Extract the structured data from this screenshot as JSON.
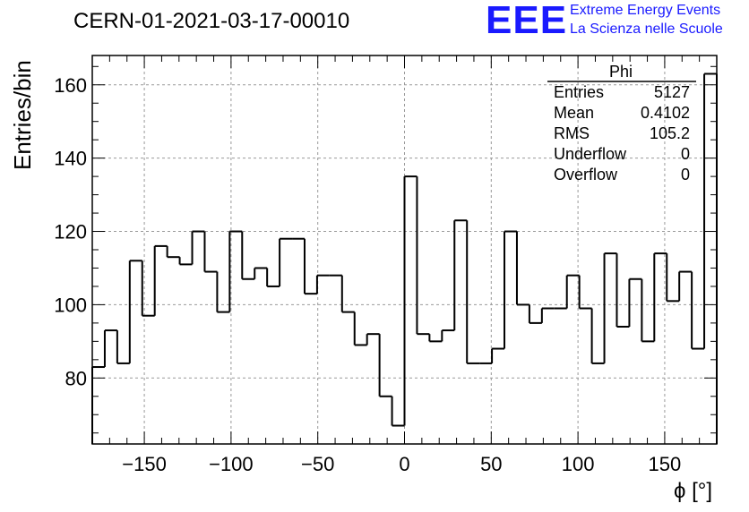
{
  "header": {
    "title": "CERN-01-2021-03-17-00010",
    "logo_text": "EEE",
    "logo_line1": "Extreme Energy Events",
    "logo_line2": "La Scienza nelle Scuole"
  },
  "stats_box": {
    "name": "Phi",
    "rows": [
      {
        "label": "Entries",
        "value": "5127"
      },
      {
        "label": "Mean",
        "value": "0.4102"
      },
      {
        "label": "RMS",
        "value": "105.2"
      },
      {
        "label": "Underflow",
        "value": "0"
      },
      {
        "label": "Overflow",
        "value": "0"
      }
    ]
  },
  "colors": {
    "accent": "#1a1aff",
    "line": "#000000",
    "grid": "#999999"
  },
  "chart_data": {
    "type": "bar",
    "style": "step-histogram",
    "title": "CERN-01-2021-03-17-00010",
    "xlabel": "ϕ [°]",
    "ylabel": "Entries/bin",
    "xlim": [
      -180,
      180
    ],
    "ylim": [
      62,
      168
    ],
    "xticks": [
      -150,
      -100,
      -50,
      0,
      50,
      100,
      150
    ],
    "yticks": [
      80,
      100,
      120,
      140,
      160
    ],
    "grid": true,
    "bin_edges": [
      -180,
      -172.8,
      -165.6,
      -158.4,
      -151.2,
      -144,
      -136.8,
      -129.6,
      -122.4,
      -115.2,
      -108,
      -100.8,
      -93.6,
      -86.4,
      -79.2,
      -72,
      -64.8,
      -57.6,
      -50.4,
      -43.2,
      -36,
      -28.8,
      -21.6,
      -14.4,
      -7.2,
      0,
      7.2,
      14.4,
      21.6,
      28.8,
      36,
      43.2,
      50.4,
      57.6,
      64.8,
      72,
      79.2,
      86.4,
      93.6,
      100.8,
      108,
      115.2,
      122.4,
      129.6,
      136.8,
      144,
      151.2,
      158.4,
      165.6,
      172.8,
      180
    ],
    "values": [
      83,
      93,
      84,
      112,
      97,
      116,
      113,
      111,
      120,
      109,
      98,
      120,
      107,
      110,
      105,
      118,
      118,
      103,
      108,
      108,
      98,
      89,
      92,
      75,
      67,
      135,
      92,
      90,
      93,
      123,
      84,
      84,
      88,
      120,
      100,
      95,
      99,
      99,
      108,
      99,
      84,
      114,
      94,
      107,
      90,
      114,
      101,
      109,
      88,
      163
    ]
  }
}
